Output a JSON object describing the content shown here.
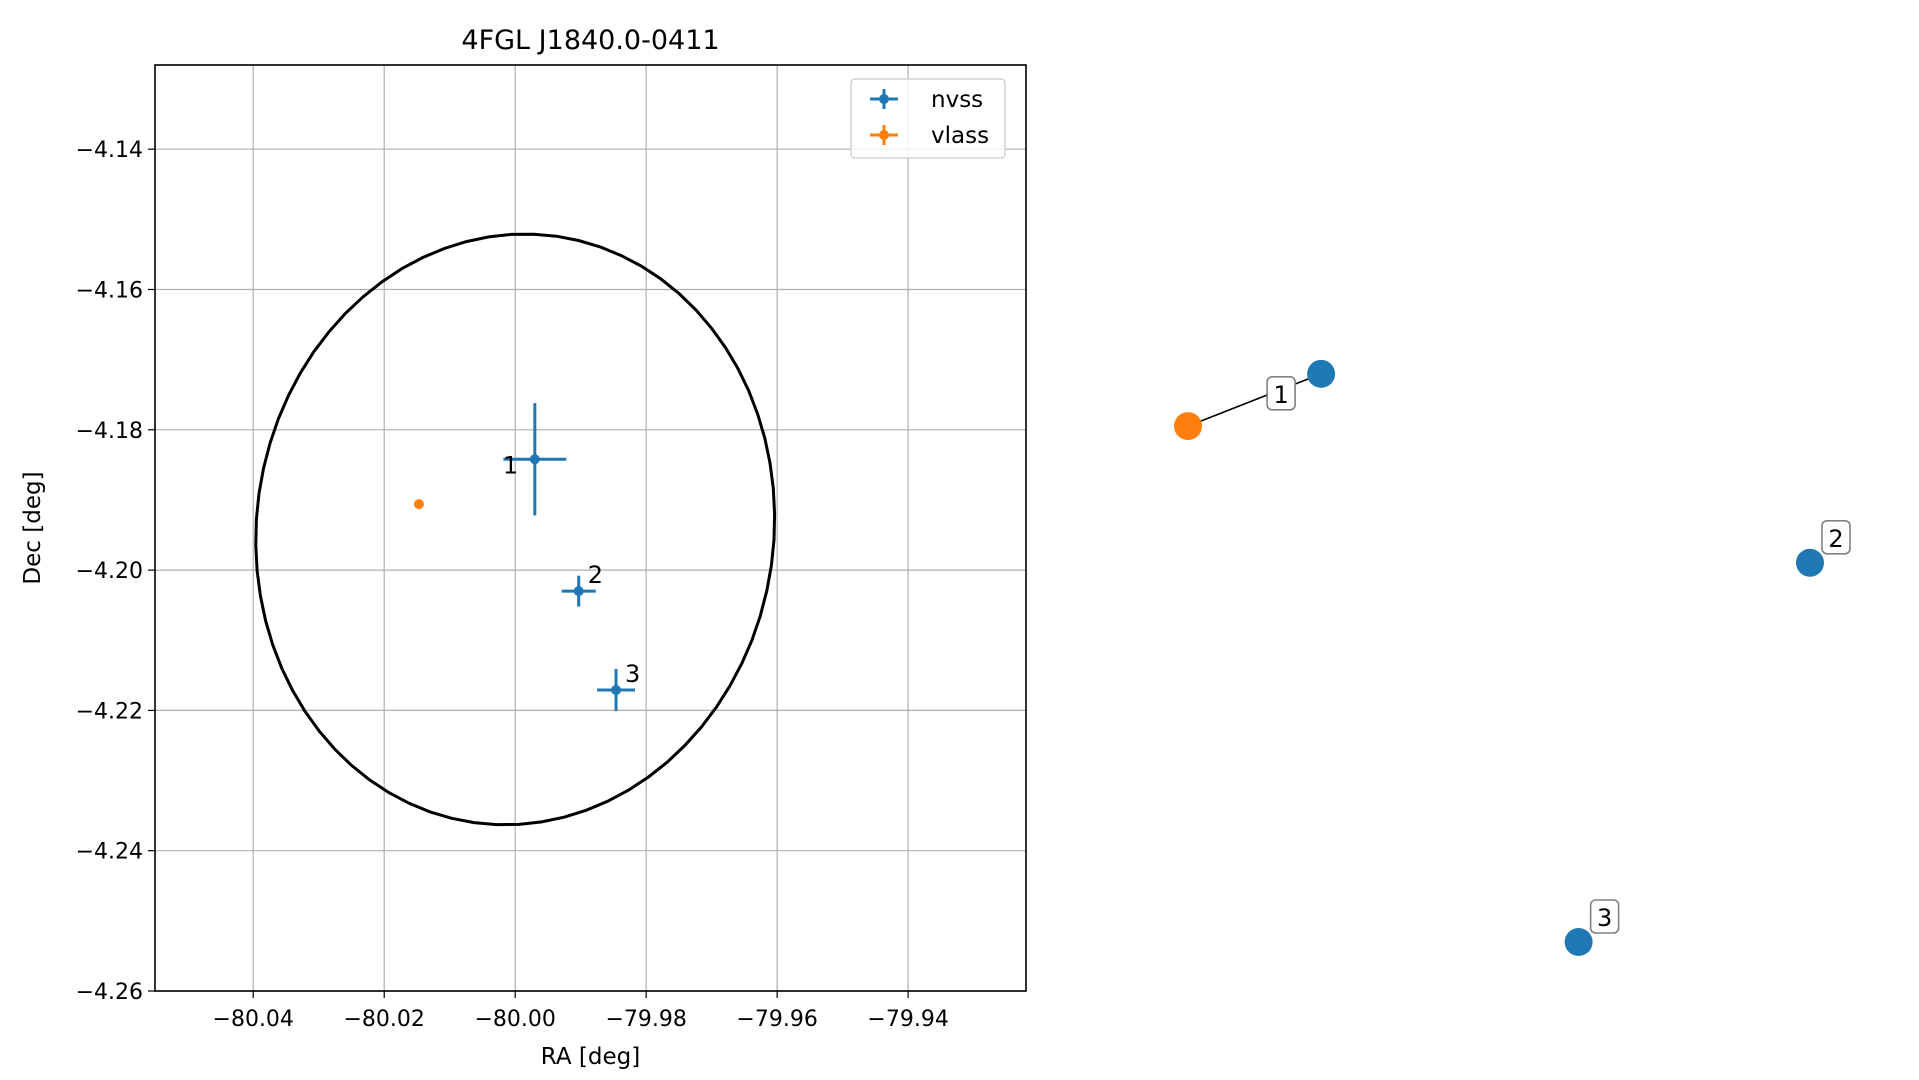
{
  "chart_data": [
    {
      "type": "scatter",
      "title": "4FGL J1840.0-0411",
      "xlabel": "RA [deg]",
      "ylabel": "Dec [deg]",
      "xlim": [
        -80.055,
        -79.922
      ],
      "ylim": [
        -4.26,
        -4.128
      ],
      "xticks": [
        -80.04,
        -80.02,
        -80.0,
        -79.98,
        -79.96,
        -79.94
      ],
      "xtick_labels": [
        "−80.04",
        "−80.02",
        "−80.00",
        "−79.98",
        "−79.96",
        "−79.94"
      ],
      "yticks": [
        -4.14,
        -4.16,
        -4.18,
        -4.2,
        -4.22,
        -4.24,
        -4.26
      ],
      "ytick_labels": [
        "−4.14",
        "−4.16",
        "−4.18",
        "−4.20",
        "−4.22",
        "−4.24",
        "−4.26"
      ],
      "grid": true,
      "legend_position": "upper right",
      "colors": {
        "nvss": "#1f77b4",
        "vlass": "#ff7f0e",
        "ellipse": "#000000"
      },
      "series": [
        {
          "name": "nvss",
          "points": [
            {
              "label": "1",
              "ra": -79.997,
              "dec": -4.1842,
              "ra_err": 0.0048,
              "dec_err": 0.008
            },
            {
              "label": "2",
              "ra": -79.9903,
              "dec": -4.203,
              "ra_err": 0.0026,
              "dec_err": 0.0022
            },
            {
              "label": "3",
              "ra": -79.9846,
              "dec": -4.2171,
              "ra_err": 0.0029,
              "dec_err": 0.003
            }
          ]
        },
        {
          "name": "vlass",
          "points": [
            {
              "label": "",
              "ra": -80.0147,
              "dec": -4.1906,
              "ra_err": 0.0002,
              "dec_err": 0.0002
            }
          ]
        }
      ],
      "ellipse": {
        "center_ra": -80.0,
        "center_dec": -4.1942,
        "semi_ra": 0.0395,
        "semi_dec": 0.0422,
        "angle_deg": 8
      }
    },
    {
      "type": "scatter",
      "title": "",
      "axes_visible": false,
      "points": [
        {
          "label": "1",
          "series": "nvss",
          "x": 0.214,
          "y": 0.848
        },
        {
          "label": "",
          "series": "vlass",
          "x": 0.0,
          "y": 0.77
        },
        {
          "label": "2",
          "series": "nvss",
          "x": 1.0,
          "y": 0.566
        },
        {
          "label": "3",
          "series": "nvss",
          "x": 0.628,
          "y": 0.0
        }
      ],
      "connections": [
        {
          "from": 0,
          "to": 1
        }
      ],
      "boxed_labels": [
        "1",
        "2",
        "3"
      ]
    }
  ]
}
